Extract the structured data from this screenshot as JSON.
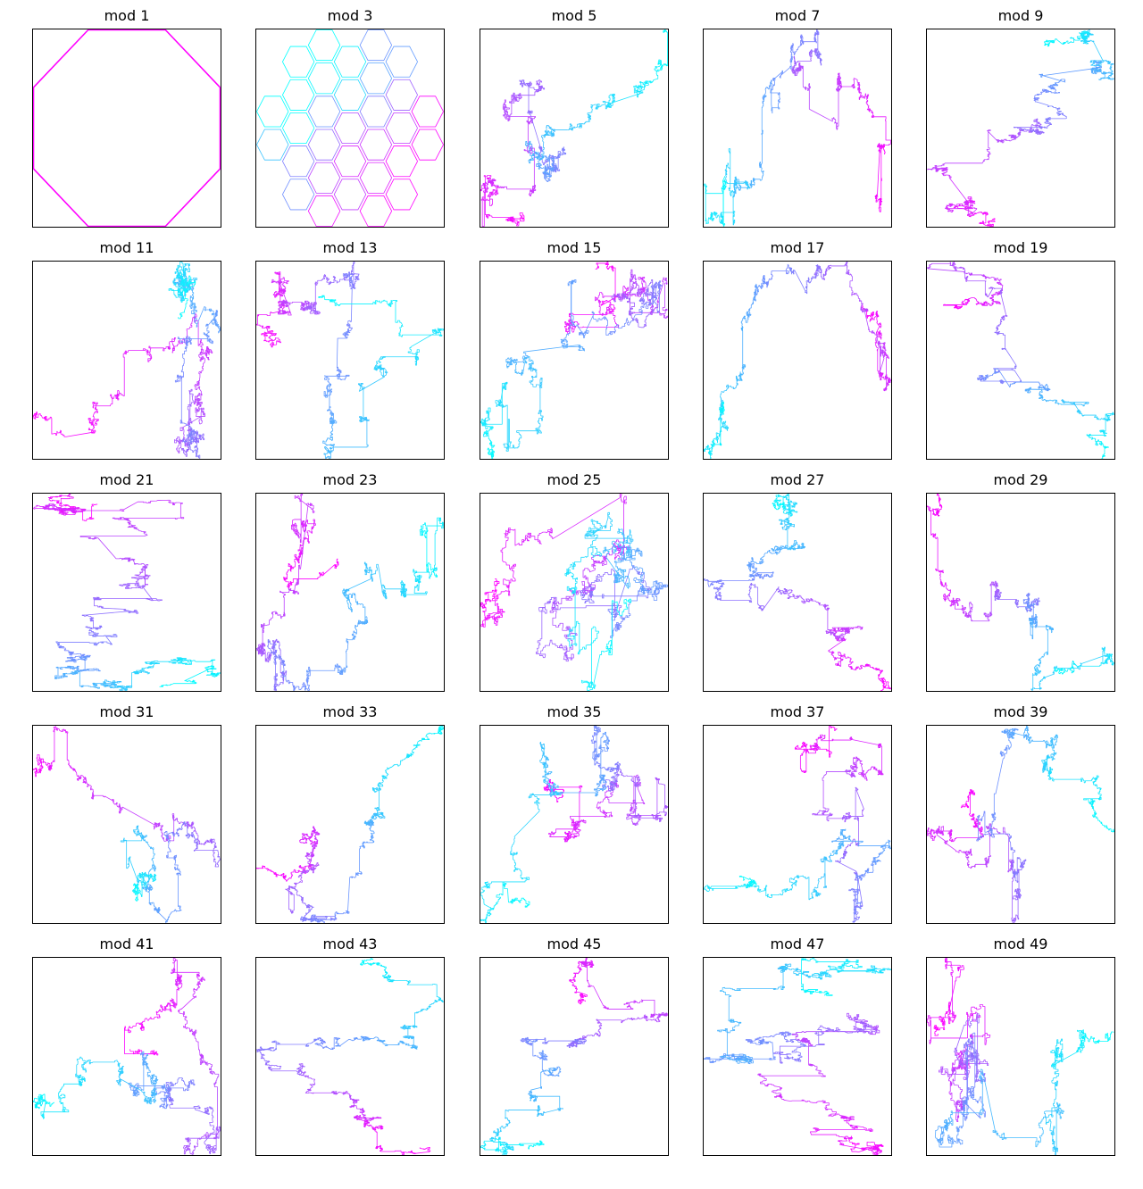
{
  "chart_data": {
    "type": "line",
    "layout": {
      "rows": 5,
      "cols": 5
    },
    "colormap": {
      "start": "#00ffff",
      "end": "#ff00ff"
    },
    "frame_color": "#000000",
    "axes_visible": false,
    "grid": false,
    "panels": [
      {
        "title": "mod 1",
        "modulus": 1,
        "pattern": "octagon"
      },
      {
        "title": "mod 3",
        "modulus": 3,
        "pattern": "hexagons"
      },
      {
        "title": "mod 5",
        "modulus": 5,
        "pattern": "walk",
        "seed": 5
      },
      {
        "title": "mod 7",
        "modulus": 7,
        "pattern": "walk",
        "seed": 7
      },
      {
        "title": "mod 9",
        "modulus": 9,
        "pattern": "walk",
        "seed": 9
      },
      {
        "title": "mod 11",
        "modulus": 11,
        "pattern": "walk",
        "seed": 11
      },
      {
        "title": "mod 13",
        "modulus": 13,
        "pattern": "walk",
        "seed": 13
      },
      {
        "title": "mod 15",
        "modulus": 15,
        "pattern": "walk",
        "seed": 15
      },
      {
        "title": "mod 17",
        "modulus": 17,
        "pattern": "walk",
        "seed": 17
      },
      {
        "title": "mod 19",
        "modulus": 19,
        "pattern": "walk",
        "seed": 19
      },
      {
        "title": "mod 21",
        "modulus": 21,
        "pattern": "walk",
        "seed": 21
      },
      {
        "title": "mod 23",
        "modulus": 23,
        "pattern": "walk",
        "seed": 23
      },
      {
        "title": "mod 25",
        "modulus": 25,
        "pattern": "walk",
        "seed": 25
      },
      {
        "title": "mod 27",
        "modulus": 27,
        "pattern": "walk",
        "seed": 27
      },
      {
        "title": "mod 29",
        "modulus": 29,
        "pattern": "walk",
        "seed": 29
      },
      {
        "title": "mod 31",
        "modulus": 31,
        "pattern": "walk",
        "seed": 31
      },
      {
        "title": "mod 33",
        "modulus": 33,
        "pattern": "walk",
        "seed": 33
      },
      {
        "title": "mod 35",
        "modulus": 35,
        "pattern": "walk",
        "seed": 35
      },
      {
        "title": "mod 37",
        "modulus": 37,
        "pattern": "walk",
        "seed": 37
      },
      {
        "title": "mod 39",
        "modulus": 39,
        "pattern": "walk",
        "seed": 39
      },
      {
        "title": "mod 41",
        "modulus": 41,
        "pattern": "walk",
        "seed": 41
      },
      {
        "title": "mod 43",
        "modulus": 43,
        "pattern": "walk",
        "seed": 43
      },
      {
        "title": "mod 45",
        "modulus": 45,
        "pattern": "walk",
        "seed": 45
      },
      {
        "title": "mod 47",
        "modulus": 47,
        "pattern": "walk",
        "seed": 47
      },
      {
        "title": "mod 49",
        "modulus": 49,
        "pattern": "walk",
        "seed": 49
      }
    ]
  }
}
